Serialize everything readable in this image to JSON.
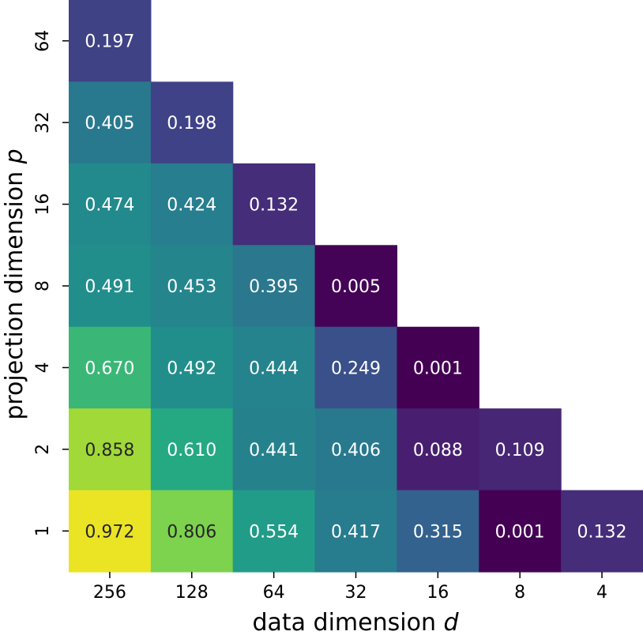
{
  "chart_data": {
    "type": "heatmap",
    "colormap": "viridis",
    "vmin": 0.0,
    "vmax": 1.0,
    "x_categories": [
      "256",
      "128",
      "64",
      "32",
      "16",
      "8",
      "4"
    ],
    "y_categories": [
      "64",
      "32",
      "16",
      "8",
      "4",
      "2",
      "1"
    ],
    "xlabel_text": "data dimension ",
    "xlabel_var": "d",
    "ylabel_text": "projection dimension ",
    "ylabel_var": "p",
    "cells": [
      {
        "x": "256",
        "y": "64",
        "value": 0.197,
        "label": "0.197"
      },
      {
        "x": "256",
        "y": "32",
        "value": 0.405,
        "label": "0.405"
      },
      {
        "x": "128",
        "y": "32",
        "value": 0.198,
        "label": "0.198"
      },
      {
        "x": "256",
        "y": "16",
        "value": 0.474,
        "label": "0.474"
      },
      {
        "x": "128",
        "y": "16",
        "value": 0.424,
        "label": "0.424"
      },
      {
        "x": "64",
        "y": "16",
        "value": 0.132,
        "label": "0.132"
      },
      {
        "x": "256",
        "y": "8",
        "value": 0.491,
        "label": "0.491"
      },
      {
        "x": "128",
        "y": "8",
        "value": 0.453,
        "label": "0.453"
      },
      {
        "x": "64",
        "y": "8",
        "value": 0.395,
        "label": "0.395"
      },
      {
        "x": "32",
        "y": "8",
        "value": 0.005,
        "label": "0.005"
      },
      {
        "x": "256",
        "y": "4",
        "value": 0.67,
        "label": "0.670"
      },
      {
        "x": "128",
        "y": "4",
        "value": 0.492,
        "label": "0.492"
      },
      {
        "x": "64",
        "y": "4",
        "value": 0.444,
        "label": "0.444"
      },
      {
        "x": "32",
        "y": "4",
        "value": 0.249,
        "label": "0.249"
      },
      {
        "x": "16",
        "y": "4",
        "value": 0.001,
        "label": "0.001"
      },
      {
        "x": "256",
        "y": "2",
        "value": 0.858,
        "label": "0.858"
      },
      {
        "x": "128",
        "y": "2",
        "value": 0.61,
        "label": "0.610"
      },
      {
        "x": "64",
        "y": "2",
        "value": 0.441,
        "label": "0.441"
      },
      {
        "x": "32",
        "y": "2",
        "value": 0.406,
        "label": "0.406"
      },
      {
        "x": "16",
        "y": "2",
        "value": 0.088,
        "label": "0.088"
      },
      {
        "x": "8",
        "y": "2",
        "value": 0.109,
        "label": "0.109"
      },
      {
        "x": "256",
        "y": "1",
        "value": 0.972,
        "label": "0.972"
      },
      {
        "x": "128",
        "y": "1",
        "value": 0.806,
        "label": "0.806"
      },
      {
        "x": "64",
        "y": "1",
        "value": 0.554,
        "label": "0.554"
      },
      {
        "x": "32",
        "y": "1",
        "value": 0.417,
        "label": "0.417"
      },
      {
        "x": "16",
        "y": "1",
        "value": 0.315,
        "label": "0.315"
      },
      {
        "x": "8",
        "y": "1",
        "value": 0.001,
        "label": "0.001"
      },
      {
        "x": "4",
        "y": "1",
        "value": 0.132,
        "label": "0.132"
      }
    ]
  }
}
